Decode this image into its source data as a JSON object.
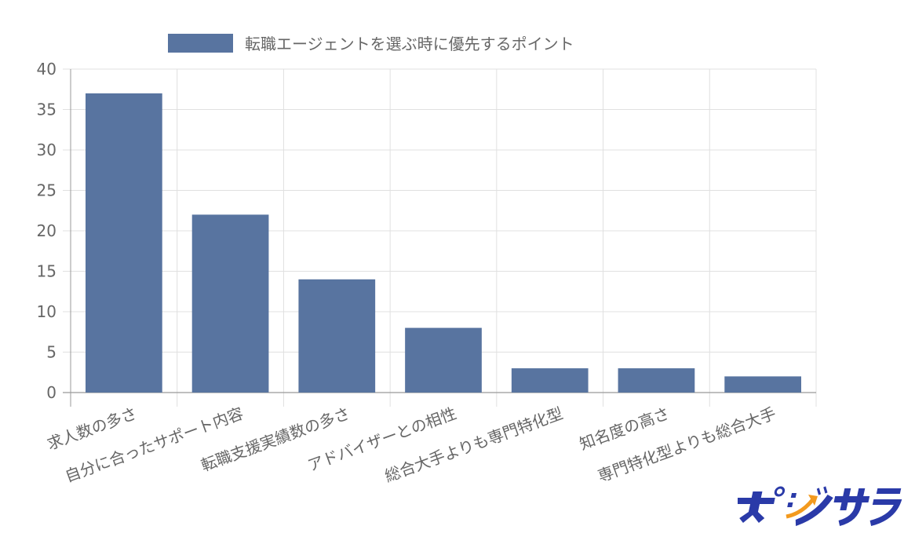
{
  "chart_data": {
    "type": "bar",
    "categories": [
      "求人数の多さ",
      "自分に合ったサポート内容",
      "転職支援実績数の多さ",
      "アドバイザーとの相性",
      "総合大手よりも専門特化型",
      "知名度の高さ",
      "専門特化型よりも総合大手"
    ],
    "series": [
      {
        "name": "転職エージェントを選ぶ時に優先するポイント",
        "values": [
          37,
          22,
          14,
          8,
          3,
          3,
          2
        ],
        "color": "#5874a0"
      }
    ],
    "ylim": [
      0,
      40
    ],
    "yticks": [
      0,
      5,
      10,
      15,
      20,
      25,
      30,
      35,
      40
    ],
    "grid": true,
    "legend": "top-center",
    "xlabel": "",
    "ylabel": ""
  },
  "logo": {
    "text": "ポジサラ",
    "color": "#2a3aa8"
  }
}
